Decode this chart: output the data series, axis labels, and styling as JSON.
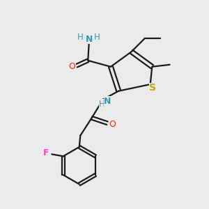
{
  "bg_color": "#ebebeb",
  "bond_color": "#1a1a1a",
  "colors": {
    "N": "#3399aa",
    "O": "#ff2200",
    "S": "#bbaa00",
    "F": "#ff44cc",
    "C": "#1a1a1a",
    "H": "#3399aa"
  }
}
